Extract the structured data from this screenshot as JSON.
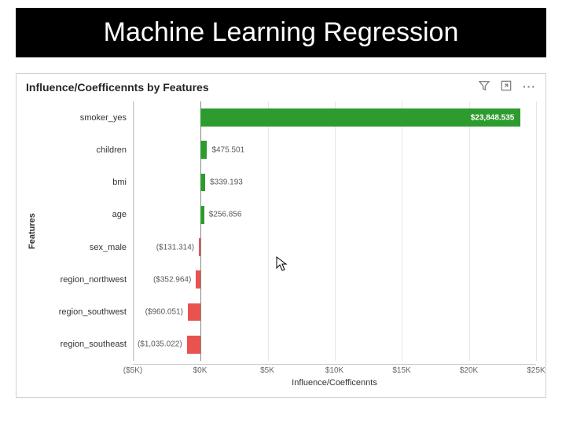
{
  "page": {
    "title": "Machine Learning Regression",
    "header_bg": "#000000",
    "header_fg": "#ffffff",
    "header_fontsize": 34
  },
  "chart": {
    "type": "bar-horizontal",
    "title": "Influence/Coefficennts by Features",
    "title_fontsize": 14,
    "x_label": "Influence/Coefficennts",
    "y_label": "Features",
    "label_fontsize": 11,
    "background_color": "#ffffff",
    "border_color": "#d0d0d0",
    "grid_color": "#e6e6e6",
    "zero_line_color": "#888888",
    "positive_color": "#2e9b2e",
    "negative_color": "#e8524f",
    "xlim": [
      -5000,
      25000
    ],
    "xtick_step": 5000,
    "xticks": [
      {
        "value": -5000,
        "label": "($5K)"
      },
      {
        "value": 0,
        "label": "$0K"
      },
      {
        "value": 5000,
        "label": "$5K"
      },
      {
        "value": 10000,
        "label": "$10K"
      },
      {
        "value": 15000,
        "label": "$15K"
      },
      {
        "value": 20000,
        "label": "$20K"
      },
      {
        "value": 25000,
        "label": "$25K"
      }
    ],
    "data_label_fontsize": 10,
    "data_label_positive_text": "#ffffff",
    "data_label_color": "#5a5a5a",
    "features": [
      {
        "name": "smoker_yes",
        "value": 23848.535,
        "display": "$23,848.535",
        "label_inside": true
      },
      {
        "name": "children",
        "value": 475.501,
        "display": "$475.501",
        "label_inside": false
      },
      {
        "name": "bmi",
        "value": 339.193,
        "display": "$339.193",
        "label_inside": false
      },
      {
        "name": "age",
        "value": 256.856,
        "display": "$256.856",
        "label_inside": false
      },
      {
        "name": "sex_male",
        "value": -131.314,
        "display": "($131.314)",
        "label_inside": false
      },
      {
        "name": "region_northwest",
        "value": -352.964,
        "display": "($352.964)",
        "label_inside": false
      },
      {
        "name": "region_southwest",
        "value": -960.051,
        "display": "($960.051)",
        "label_inside": false
      },
      {
        "name": "region_southeast",
        "value": -1035.022,
        "display": "($1,035.022)",
        "label_inside": false
      }
    ]
  },
  "toolbar": {
    "filter_title": "Filter",
    "focus_title": "Focus mode",
    "more_title": "More options"
  }
}
